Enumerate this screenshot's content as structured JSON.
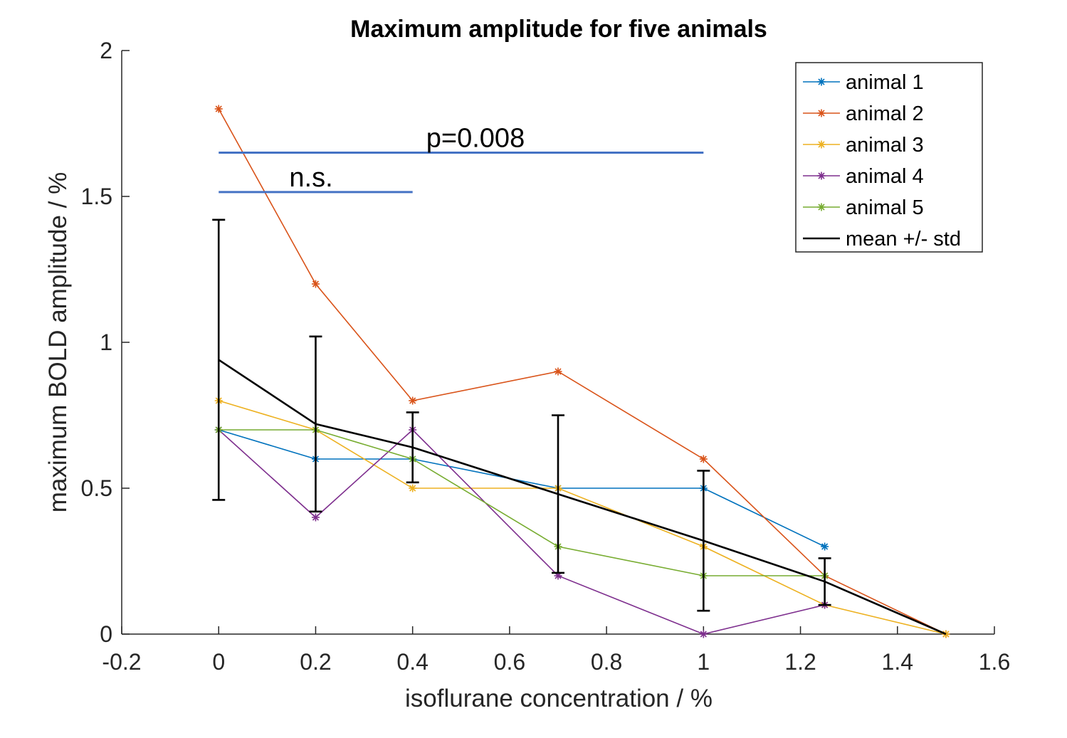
{
  "chart_data": {
    "type": "line",
    "title": "Maximum amplitude for five animals",
    "xlabel": "isoflurane concentration / %",
    "ylabel": "maximum BOLD amplitude / %",
    "xlim": [
      -0.2,
      1.6
    ],
    "ylim": [
      0,
      2
    ],
    "xticks": [
      -0.2,
      0,
      0.2,
      0.4,
      0.6,
      0.8,
      1,
      1.2,
      1.4,
      1.6
    ],
    "xtick_labels": [
      "-0.2",
      "0",
      "0.2",
      "0.4",
      "0.6",
      "0.8",
      "1",
      "1.2",
      "1.4",
      "1.6"
    ],
    "yticks": [
      0,
      0.5,
      1,
      1.5,
      2
    ],
    "ytick_labels": [
      "0",
      "0.5",
      "1",
      "1.5",
      "2"
    ],
    "grid": false,
    "legend_position": "top-right",
    "series": [
      {
        "name": "animal 1",
        "color": "#0072BD",
        "x": [
          0,
          0.2,
          0.4,
          0.7,
          1,
          1.25
        ],
        "values": [
          0.7,
          0.6,
          0.6,
          0.5,
          0.5,
          0.3
        ]
      },
      {
        "name": "animal 2",
        "color": "#D95319",
        "x": [
          0,
          0.2,
          0.4,
          0.7,
          1,
          1.25,
          1.5
        ],
        "values": [
          1.8,
          1.2,
          0.8,
          0.9,
          0.6,
          0.2,
          0
        ]
      },
      {
        "name": "animal 3",
        "color": "#EDB120",
        "x": [
          0,
          0.2,
          0.4,
          0.7,
          1,
          1.25,
          1.5
        ],
        "values": [
          0.8,
          0.7,
          0.5,
          0.5,
          0.3,
          0.1,
          0
        ]
      },
      {
        "name": "animal 4",
        "color": "#7E2F8E",
        "x": [
          0,
          0.2,
          0.4,
          0.7,
          1,
          1.25
        ],
        "values": [
          0.7,
          0.4,
          0.7,
          0.2,
          0,
          0.1
        ]
      },
      {
        "name": "animal 5",
        "color": "#77AC30",
        "x": [
          0,
          0.2,
          0.4,
          0.7,
          1,
          1.25
        ],
        "values": [
          0.7,
          0.7,
          0.6,
          0.3,
          0.2,
          0.2
        ]
      }
    ],
    "mean": {
      "name": "mean +/- std",
      "color": "#000000",
      "x": [
        0,
        0.2,
        0.4,
        0.7,
        1,
        1.25,
        1.5
      ],
      "values": [
        0.94,
        0.72,
        0.64,
        0.48,
        0.32,
        0.18,
        0
      ],
      "std": [
        0.48,
        0.3,
        0.12,
        0.27,
        0.24,
        0.08,
        0
      ]
    },
    "annotations": [
      {
        "text": "p=0.008",
        "x_start": 0,
        "x_end": 1,
        "y": 1.65,
        "color": "#4472C4"
      },
      {
        "text": "n.s.",
        "x_start": 0,
        "x_end": 0.4,
        "y": 1.515,
        "color": "#4472C4"
      }
    ]
  }
}
